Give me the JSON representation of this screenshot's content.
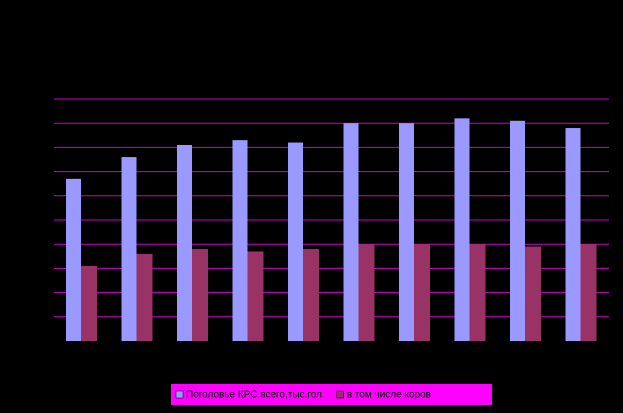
{
  "chart_data": {
    "type": "bar",
    "categories": [
      null,
      null,
      null,
      null,
      null,
      null,
      null,
      null,
      null,
      null
    ],
    "series": [
      {
        "name": "Поголовье КРС всего,тыс.гол.",
        "color": "#9999ff",
        "values": [
          6.7,
          7.6,
          8.1,
          8.3,
          8.2,
          9.0,
          9.0,
          9.2,
          9.1,
          8.8
        ]
      },
      {
        "name": "в том числе коров",
        "color": "#993366",
        "values": [
          3.1,
          3.6,
          3.8,
          3.7,
          3.8,
          4.0,
          4.0,
          4.0,
          3.9,
          4.0
        ]
      }
    ],
    "ylim": [
      0,
      10
    ],
    "yticks": [
      1,
      2,
      3,
      4,
      5,
      6,
      7,
      8,
      9,
      10
    ],
    "grid": true,
    "grid_color": "#cc00cc",
    "legend": "bottom"
  }
}
